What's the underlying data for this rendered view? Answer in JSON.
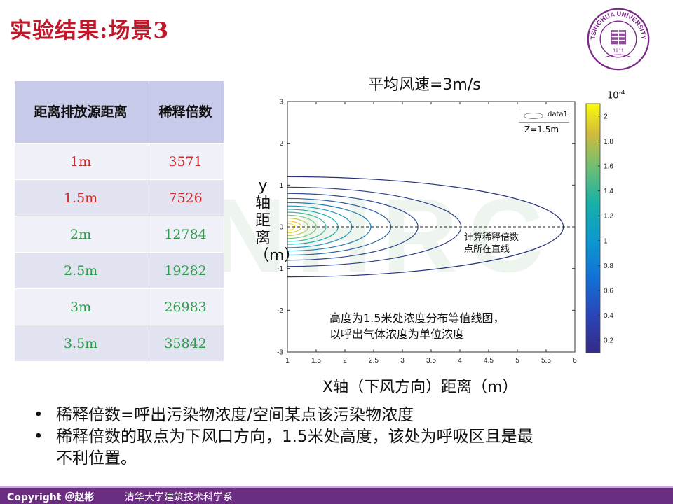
{
  "slide_title": "实验结果:场景3",
  "watermark": "NHRC",
  "table": {
    "headers": [
      "距离排放源距离",
      "稀释倍数"
    ],
    "rows": [
      {
        "distance": "1m",
        "factor": "3571"
      },
      {
        "distance": "1.5m",
        "factor": "7526"
      },
      {
        "distance": "2m",
        "factor": "12784"
      },
      {
        "distance": "2.5m",
        "factor": "19282"
      },
      {
        "distance": "3m",
        "factor": "26983"
      },
      {
        "distance": "3.5m",
        "factor": "35842"
      }
    ]
  },
  "chart_data": {
    "type": "contour",
    "title": "平均风速=3m/s",
    "xlabel": "X轴（下风方向）距离（m）",
    "ylabel": "y轴距离（m）",
    "xlim": [
      1,
      6
    ],
    "ylim": [
      -3,
      3
    ],
    "xticks": [
      "1",
      "1.5",
      "2",
      "2.5",
      "3",
      "3.5",
      "4",
      "4.5",
      "5",
      "5.5",
      "6"
    ],
    "yticks": [
      "3",
      "2",
      "1",
      "0",
      "-1",
      "-2",
      "-3"
    ],
    "legend": {
      "label": "data1",
      "placement": "top-right"
    },
    "z_label": "Z=1.5m",
    "colorbar": {
      "exponent_base": "10",
      "exponent": "-4",
      "ticks": [
        "2",
        "1.8",
        "1.6",
        "1.4",
        "1.2",
        "1",
        "0.8",
        "0.6",
        "0.4",
        "0.2"
      ],
      "range": [
        0.1,
        2.1
      ]
    },
    "contour_levels": [
      {
        "x_end": 5.8,
        "half_width": 1.2,
        "color": "#27347c"
      },
      {
        "x_end": 4.02,
        "half_width": 0.95,
        "color": "#2c3f86"
      },
      {
        "x_end": 3.27,
        "half_width": 0.8,
        "color": "#314c92"
      },
      {
        "x_end": 2.8,
        "half_width": 0.68,
        "color": "#2a62a4"
      },
      {
        "x_end": 2.45,
        "half_width": 0.58,
        "color": "#1f7cb4"
      },
      {
        "x_end": 2.12,
        "half_width": 0.5,
        "color": "#1997b6"
      },
      {
        "x_end": 1.88,
        "half_width": 0.42,
        "color": "#18acae"
      },
      {
        "x_end": 1.67,
        "half_width": 0.35,
        "color": "#3ebc99"
      },
      {
        "x_end": 1.5,
        "half_width": 0.28,
        "color": "#7dc77a"
      },
      {
        "x_end": 1.36,
        "half_width": 0.21,
        "color": "#bdc95a"
      },
      {
        "x_end": 1.24,
        "half_width": 0.14,
        "color": "#eac83c"
      },
      {
        "x_end": 1.13,
        "half_width": 0.08,
        "color": "#f8e520"
      }
    ],
    "annotations": [
      [
        "计算稀释倍数",
        "点所在直线"
      ],
      [
        "高度为1.5米处浓度分布等值线图，",
        "以呼出气体浓度为单位浓度"
      ]
    ]
  },
  "bullets": [
    "稀释倍数=呼出污染物浓度/空间某点该污染物浓度",
    "稀释倍数的取点为下风口方向，1.5米处高度，该处为呼吸区且是最不利位置。"
  ],
  "bullet_marker": "•",
  "footer": {
    "copyright": "Copyright ＠赵彬",
    "org": "清华大学建筑技术科学系"
  },
  "logo": {
    "ring_text": "TSINGHUA UNIVERSITY",
    "year": "1911"
  },
  "colors": {
    "title": "#c0182a",
    "table_header": "#c7cae8",
    "text_red": "#d22a2a",
    "text_green": "#2e9a4a",
    "footer_bg": "#6a2d82",
    "logo": "#7a2b86"
  }
}
